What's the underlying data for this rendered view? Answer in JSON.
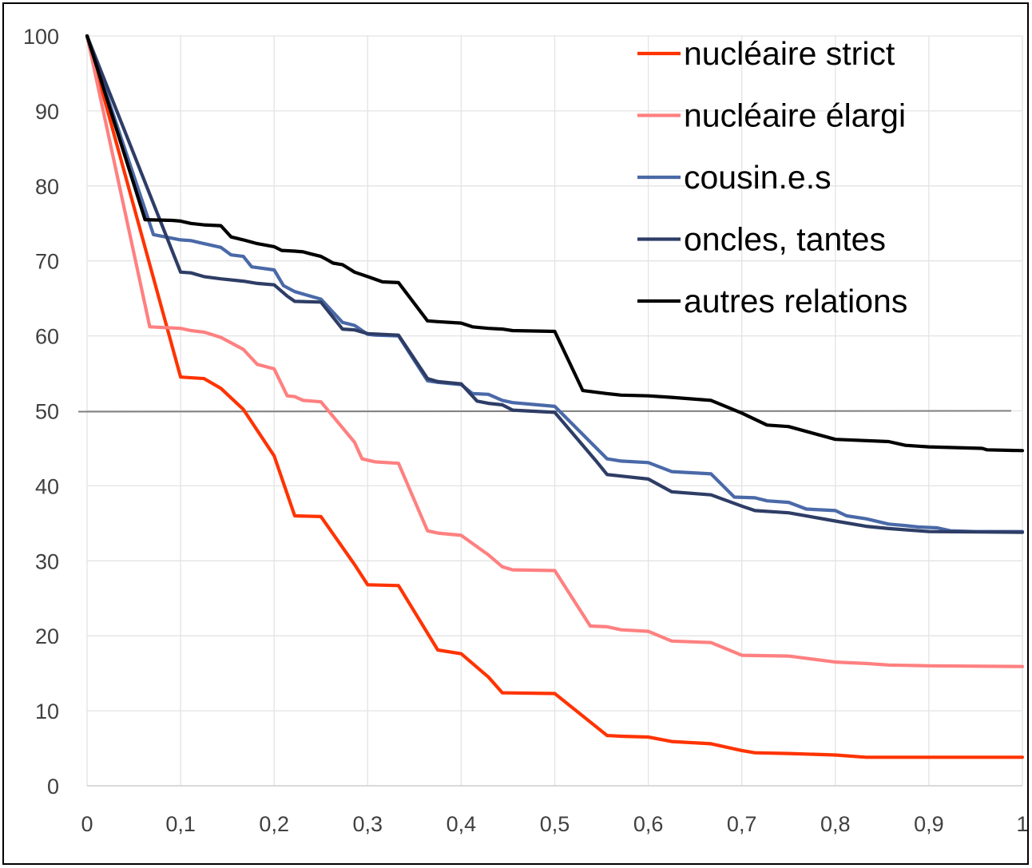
{
  "chart_data": {
    "type": "line",
    "title": "",
    "xlabel": "",
    "ylabel": "",
    "xlim": [
      0,
      1
    ],
    "ylim": [
      0,
      100
    ],
    "x_ticks": [
      "0",
      "0,1",
      "0,2",
      "0,3",
      "0,4",
      "0,5",
      "0,6",
      "0,7",
      "0,8",
      "0,9",
      "1"
    ],
    "y_ticks": [
      "0",
      "10",
      "20",
      "30",
      "40",
      "50",
      "60",
      "70",
      "80",
      "90",
      "100"
    ],
    "grid": "vertical-and-horizontal",
    "legend_position": "top-right",
    "reference_line": {
      "y": 50,
      "color": "#7f7f7f"
    },
    "series": [
      {
        "name": "nucléaire strict",
        "color": "#ff3300",
        "x": [
          0,
          0.1,
          0.125,
          0.143,
          0.167,
          0.2,
          0.222,
          0.25,
          0.286,
          0.3,
          0.333,
          0.375,
          0.4,
          0.429,
          0.444,
          0.5,
          0.556,
          0.571,
          0.6,
          0.625,
          0.667,
          0.7,
          0.714,
          0.75,
          0.8,
          0.833,
          0.857,
          0.9,
          1
        ],
        "values": [
          100,
          54.5,
          54.3,
          53,
          50.2,
          44,
          36,
          35.9,
          29.5,
          26.8,
          26.7,
          18.1,
          17.6,
          14.5,
          12.4,
          12.3,
          6.7,
          6.6,
          6.5,
          5.9,
          5.6,
          4.7,
          4.4,
          4.3,
          4.1,
          3.8,
          3.8,
          3.8,
          3.8
        ]
      },
      {
        "name": "nucléaire élargi",
        "color": "#ff8080",
        "x": [
          0,
          0.067,
          0.1,
          0.111,
          0.125,
          0.143,
          0.167,
          0.182,
          0.2,
          0.214,
          0.222,
          0.231,
          0.25,
          0.286,
          0.294,
          0.308,
          0.333,
          0.364,
          0.375,
          0.4,
          0.429,
          0.444,
          0.455,
          0.5,
          0.538,
          0.556,
          0.571,
          0.6,
          0.625,
          0.667,
          0.7,
          0.75,
          0.8,
          0.833,
          0.857,
          0.9,
          1
        ],
        "values": [
          100,
          61.2,
          61,
          60.7,
          60.5,
          59.8,
          58.2,
          56.2,
          55.6,
          52,
          51.9,
          51.4,
          51.2,
          45.8,
          43.6,
          43.2,
          43,
          34,
          33.7,
          33.4,
          30.8,
          29.2,
          28.8,
          28.7,
          21.3,
          21.2,
          20.8,
          20.6,
          19.3,
          19.1,
          17.4,
          17.3,
          16.5,
          16.3,
          16.1,
          16,
          15.9
        ]
      },
      {
        "name": "cousin.e.s",
        "color": "#4a69a8",
        "x": [
          0,
          0.071,
          0.1,
          0.111,
          0.125,
          0.143,
          0.154,
          0.167,
          0.176,
          0.2,
          0.21,
          0.222,
          0.25,
          0.273,
          0.286,
          0.3,
          0.308,
          0.333,
          0.364,
          0.375,
          0.4,
          0.412,
          0.429,
          0.444,
          0.455,
          0.5,
          0.556,
          0.571,
          0.6,
          0.625,
          0.667,
          0.692,
          0.714,
          0.727,
          0.75,
          0.769,
          0.8,
          0.812,
          0.833,
          0.857,
          0.875,
          0.889,
          0.909,
          0.923,
          0.95,
          1
        ],
        "values": [
          100,
          73.5,
          72.8,
          72.7,
          72.3,
          71.8,
          70.8,
          70.6,
          69.2,
          68.8,
          66.7,
          65.9,
          64.9,
          61.8,
          61.4,
          60.2,
          60.1,
          60,
          54,
          53.8,
          53.5,
          52.3,
          52.2,
          51.4,
          51.1,
          50.6,
          43.6,
          43.3,
          43.1,
          41.9,
          41.6,
          38.5,
          38.4,
          38,
          37.8,
          36.9,
          36.7,
          36,
          35.6,
          34.9,
          34.7,
          34.5,
          34.4,
          34,
          33.9,
          33.9
        ]
      },
      {
        "name": "oncles, tantes",
        "color": "#2e3d66",
        "x": [
          0,
          0.1,
          0.111,
          0.125,
          0.143,
          0.167,
          0.182,
          0.2,
          0.214,
          0.222,
          0.25,
          0.273,
          0.286,
          0.3,
          0.333,
          0.364,
          0.375,
          0.4,
          0.417,
          0.429,
          0.444,
          0.455,
          0.5,
          0.545,
          0.556,
          0.571,
          0.6,
          0.625,
          0.667,
          0.7,
          0.714,
          0.75,
          0.8,
          0.833,
          0.857,
          0.889,
          0.9,
          1
        ],
        "values": [
          100,
          68.5,
          68.4,
          67.9,
          67.6,
          67.3,
          67,
          66.8,
          65.3,
          64.6,
          64.5,
          60.9,
          60.8,
          60.3,
          60.1,
          54.3,
          53.9,
          53.6,
          51.3,
          51,
          50.8,
          50.1,
          49.8,
          43.2,
          41.5,
          41.3,
          40.9,
          39.2,
          38.8,
          37.3,
          36.7,
          36.4,
          35.3,
          34.6,
          34.3,
          34,
          33.9,
          33.8
        ]
      },
      {
        "name": "autres relations",
        "color": "#000000",
        "x": [
          0,
          0.062,
          0.091,
          0.1,
          0.111,
          0.125,
          0.143,
          0.154,
          0.167,
          0.182,
          0.2,
          0.208,
          0.222,
          0.231,
          0.24,
          0.25,
          0.256,
          0.263,
          0.273,
          0.286,
          0.3,
          0.316,
          0.333,
          0.364,
          0.375,
          0.4,
          0.412,
          0.429,
          0.444,
          0.455,
          0.5,
          0.53,
          0.556,
          0.571,
          0.6,
          0.625,
          0.667,
          0.7,
          0.727,
          0.75,
          0.8,
          0.857,
          0.875,
          0.9,
          0.957,
          0.962,
          1
        ],
        "values": [
          100,
          75.5,
          75.4,
          75.3,
          75,
          74.8,
          74.7,
          73.2,
          72.8,
          72.3,
          71.9,
          71.4,
          71.3,
          71.2,
          70.9,
          70.6,
          70.2,
          69.7,
          69.5,
          68.5,
          67.9,
          67.2,
          67.1,
          62,
          61.9,
          61.7,
          61.2,
          61,
          60.9,
          60.7,
          60.6,
          52.7,
          52.3,
          52.1,
          52,
          51.8,
          51.4,
          49.7,
          48.1,
          47.9,
          46.2,
          45.9,
          45.4,
          45.2,
          45,
          44.8,
          44.7
        ]
      }
    ]
  }
}
